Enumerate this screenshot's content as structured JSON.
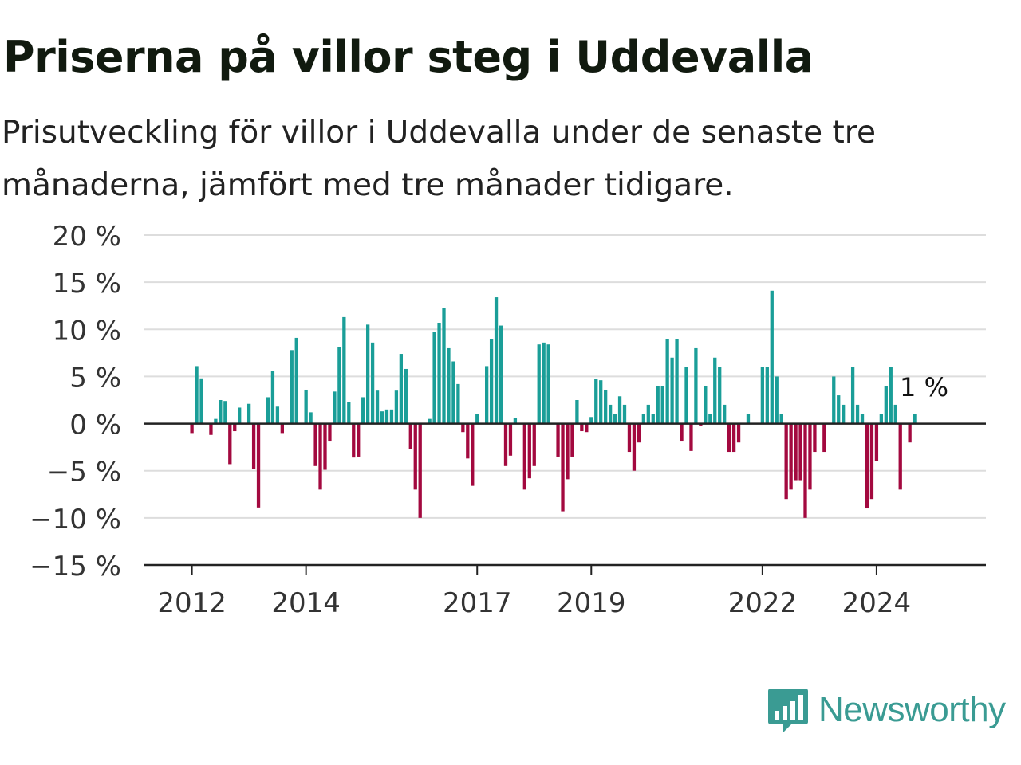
{
  "title": "Priserna på villor steg i Uddevalla",
  "subtitle": "Prisutveckling för villor i Uddevalla under de senaste tre månaderna, jämfört med tre månader tidigare.",
  "brand": {
    "name": "Newsworthy",
    "color": "#3a9b93",
    "icon": "bar-chart-speech-bubble-icon"
  },
  "colors": {
    "positive": "#1a9e98",
    "negative": "#a3093f",
    "grid": "#dddddd",
    "axis": "#222222"
  },
  "chart_data": {
    "type": "bar",
    "title": "Priserna på villor steg i Uddevalla",
    "subtitle": "Prisutveckling för villor i Uddevalla under de senaste tre månaderna, jämfört med tre månader tidigare.",
    "xlabel": "",
    "ylabel": "",
    "ylim": [
      -15,
      20
    ],
    "yticks": [
      20,
      15,
      10,
      5,
      0,
      -5,
      -10,
      -15
    ],
    "ytick_labels": [
      "20 %",
      "15 %",
      "10 %",
      "5 %",
      "0 %",
      "−5 %",
      "−10 %",
      "−15 %"
    ],
    "xlim": [
      "2011-03",
      "2025-12"
    ],
    "xticks": [
      "2012-01",
      "2014-01",
      "2017-01",
      "2019-01",
      "2022-01",
      "2024-01"
    ],
    "xtick_labels": [
      "2012",
      "2014",
      "2017",
      "2019",
      "2022",
      "2024"
    ],
    "grid": true,
    "annotation": {
      "text": "1 %",
      "month": "2024-11"
    },
    "bars": [
      [
        "2012-01",
        -1
      ],
      [
        "2012-02",
        6.1
      ],
      [
        "2012-03",
        4.8
      ],
      [
        "2012-05",
        -1.2
      ],
      [
        "2012-06",
        0.5
      ],
      [
        "2012-07",
        2.5
      ],
      [
        "2012-08",
        2.4
      ],
      [
        "2012-09",
        -4.3
      ],
      [
        "2012-10",
        -0.8
      ],
      [
        "2012-11",
        1.7
      ],
      [
        "2013-01",
        2.1
      ],
      [
        "2013-02",
        -4.8
      ],
      [
        "2013-03",
        -8.9
      ],
      [
        "2013-05",
        2.8
      ],
      [
        "2013-06",
        5.6
      ],
      [
        "2013-07",
        1.8
      ],
      [
        "2013-08",
        -1.0
      ],
      [
        "2013-10",
        7.8
      ],
      [
        "2013-11",
        9.1
      ],
      [
        "2014-01",
        3.6
      ],
      [
        "2014-02",
        1.2
      ],
      [
        "2014-03",
        -4.5
      ],
      [
        "2014-04",
        -7.0
      ],
      [
        "2014-05",
        -4.9
      ],
      [
        "2014-06",
        -1.9
      ],
      [
        "2014-07",
        3.4
      ],
      [
        "2014-08",
        8.1
      ],
      [
        "2014-09",
        11.3
      ],
      [
        "2014-10",
        2.3
      ],
      [
        "2014-11",
        -3.6
      ],
      [
        "2014-12",
        -3.5
      ],
      [
        "2015-01",
        2.8
      ],
      [
        "2015-02",
        10.5
      ],
      [
        "2015-03",
        8.6
      ],
      [
        "2015-04",
        3.5
      ],
      [
        "2015-05",
        1.3
      ],
      [
        "2015-06",
        1.5
      ],
      [
        "2015-07",
        1.5
      ],
      [
        "2015-08",
        3.5
      ],
      [
        "2015-09",
        7.4
      ],
      [
        "2015-10",
        5.8
      ],
      [
        "2015-11",
        -2.7
      ],
      [
        "2015-12",
        -7.0
      ],
      [
        "2016-01",
        -10.0
      ],
      [
        "2016-03",
        0.5
      ],
      [
        "2016-04",
        9.7
      ],
      [
        "2016-05",
        10.7
      ],
      [
        "2016-06",
        12.3
      ],
      [
        "2016-07",
        8.0
      ],
      [
        "2016-08",
        6.6
      ],
      [
        "2016-09",
        4.2
      ],
      [
        "2016-10",
        -0.9
      ],
      [
        "2016-11",
        -3.7
      ],
      [
        "2016-12",
        -6.6
      ],
      [
        "2017-01",
        1.0
      ],
      [
        "2017-03",
        6.1
      ],
      [
        "2017-04",
        9.0
      ],
      [
        "2017-05",
        13.4
      ],
      [
        "2017-06",
        10.4
      ],
      [
        "2017-07",
        -4.5
      ],
      [
        "2017-08",
        -3.4
      ],
      [
        "2017-09",
        0.6
      ],
      [
        "2017-11",
        -7.0
      ],
      [
        "2017-12",
        -5.8
      ],
      [
        "2018-01",
        -4.5
      ],
      [
        "2018-02",
        8.4
      ],
      [
        "2018-03",
        8.6
      ],
      [
        "2018-04",
        8.4
      ],
      [
        "2018-06",
        -3.5
      ],
      [
        "2018-07",
        -9.3
      ],
      [
        "2018-08",
        -5.9
      ],
      [
        "2018-09",
        -3.5
      ],
      [
        "2018-10",
        2.5
      ],
      [
        "2018-11",
        -0.8
      ],
      [
        "2018-12",
        -0.9
      ],
      [
        "2019-01",
        0.7
      ],
      [
        "2019-02",
        4.7
      ],
      [
        "2019-03",
        4.6
      ],
      [
        "2019-04",
        3.6
      ],
      [
        "2019-05",
        2.0
      ],
      [
        "2019-06",
        1.0
      ],
      [
        "2019-07",
        2.9
      ],
      [
        "2019-08",
        2.0
      ],
      [
        "2019-09",
        -3.0
      ],
      [
        "2019-10",
        -5.0
      ],
      [
        "2019-11",
        -2.0
      ],
      [
        "2019-12",
        1.0
      ],
      [
        "2020-01",
        2.0
      ],
      [
        "2020-02",
        1.0
      ],
      [
        "2020-03",
        4.0
      ],
      [
        "2020-04",
        4.0
      ],
      [
        "2020-05",
        9.0
      ],
      [
        "2020-06",
        7.0
      ],
      [
        "2020-07",
        9.0
      ],
      [
        "2020-08",
        -1.9
      ],
      [
        "2020-09",
        6.0
      ],
      [
        "2020-10",
        -2.9
      ],
      [
        "2020-11",
        8.0
      ],
      [
        "2020-12",
        -0.2
      ],
      [
        "2021-01",
        4.0
      ],
      [
        "2021-02",
        1.0
      ],
      [
        "2021-03",
        7.0
      ],
      [
        "2021-04",
        6.0
      ],
      [
        "2021-05",
        2.0
      ],
      [
        "2021-06",
        -3.0
      ],
      [
        "2021-07",
        -3.0
      ],
      [
        "2021-08",
        -2.0
      ],
      [
        "2021-10",
        1.0
      ],
      [
        "2022-01",
        6.0
      ],
      [
        "2022-02",
        6.0
      ],
      [
        "2022-03",
        14.1
      ],
      [
        "2022-04",
        5.0
      ],
      [
        "2022-05",
        1.0
      ],
      [
        "2022-06",
        -8.0
      ],
      [
        "2022-07",
        -7.0
      ],
      [
        "2022-08",
        -6.0
      ],
      [
        "2022-09",
        -6.0
      ],
      [
        "2022-10",
        -10.0
      ],
      [
        "2022-11",
        -7.0
      ],
      [
        "2022-12",
        -3.0
      ],
      [
        "2023-02",
        -3.0
      ],
      [
        "2023-04",
        5.0
      ],
      [
        "2023-05",
        3.0
      ],
      [
        "2023-06",
        2.0
      ],
      [
        "2023-08",
        6.0
      ],
      [
        "2023-09",
        2.0
      ],
      [
        "2023-10",
        1.0
      ],
      [
        "2023-11",
        -9.0
      ],
      [
        "2023-12",
        -8.0
      ],
      [
        "2024-01",
        -4.0
      ],
      [
        "2024-02",
        1.0
      ],
      [
        "2024-03",
        4.0
      ],
      [
        "2024-04",
        6.0
      ],
      [
        "2024-05",
        2.0
      ],
      [
        "2024-06",
        -7.0
      ],
      [
        "2024-08",
        -2.0
      ],
      [
        "2024-09",
        1.0
      ]
    ]
  }
}
